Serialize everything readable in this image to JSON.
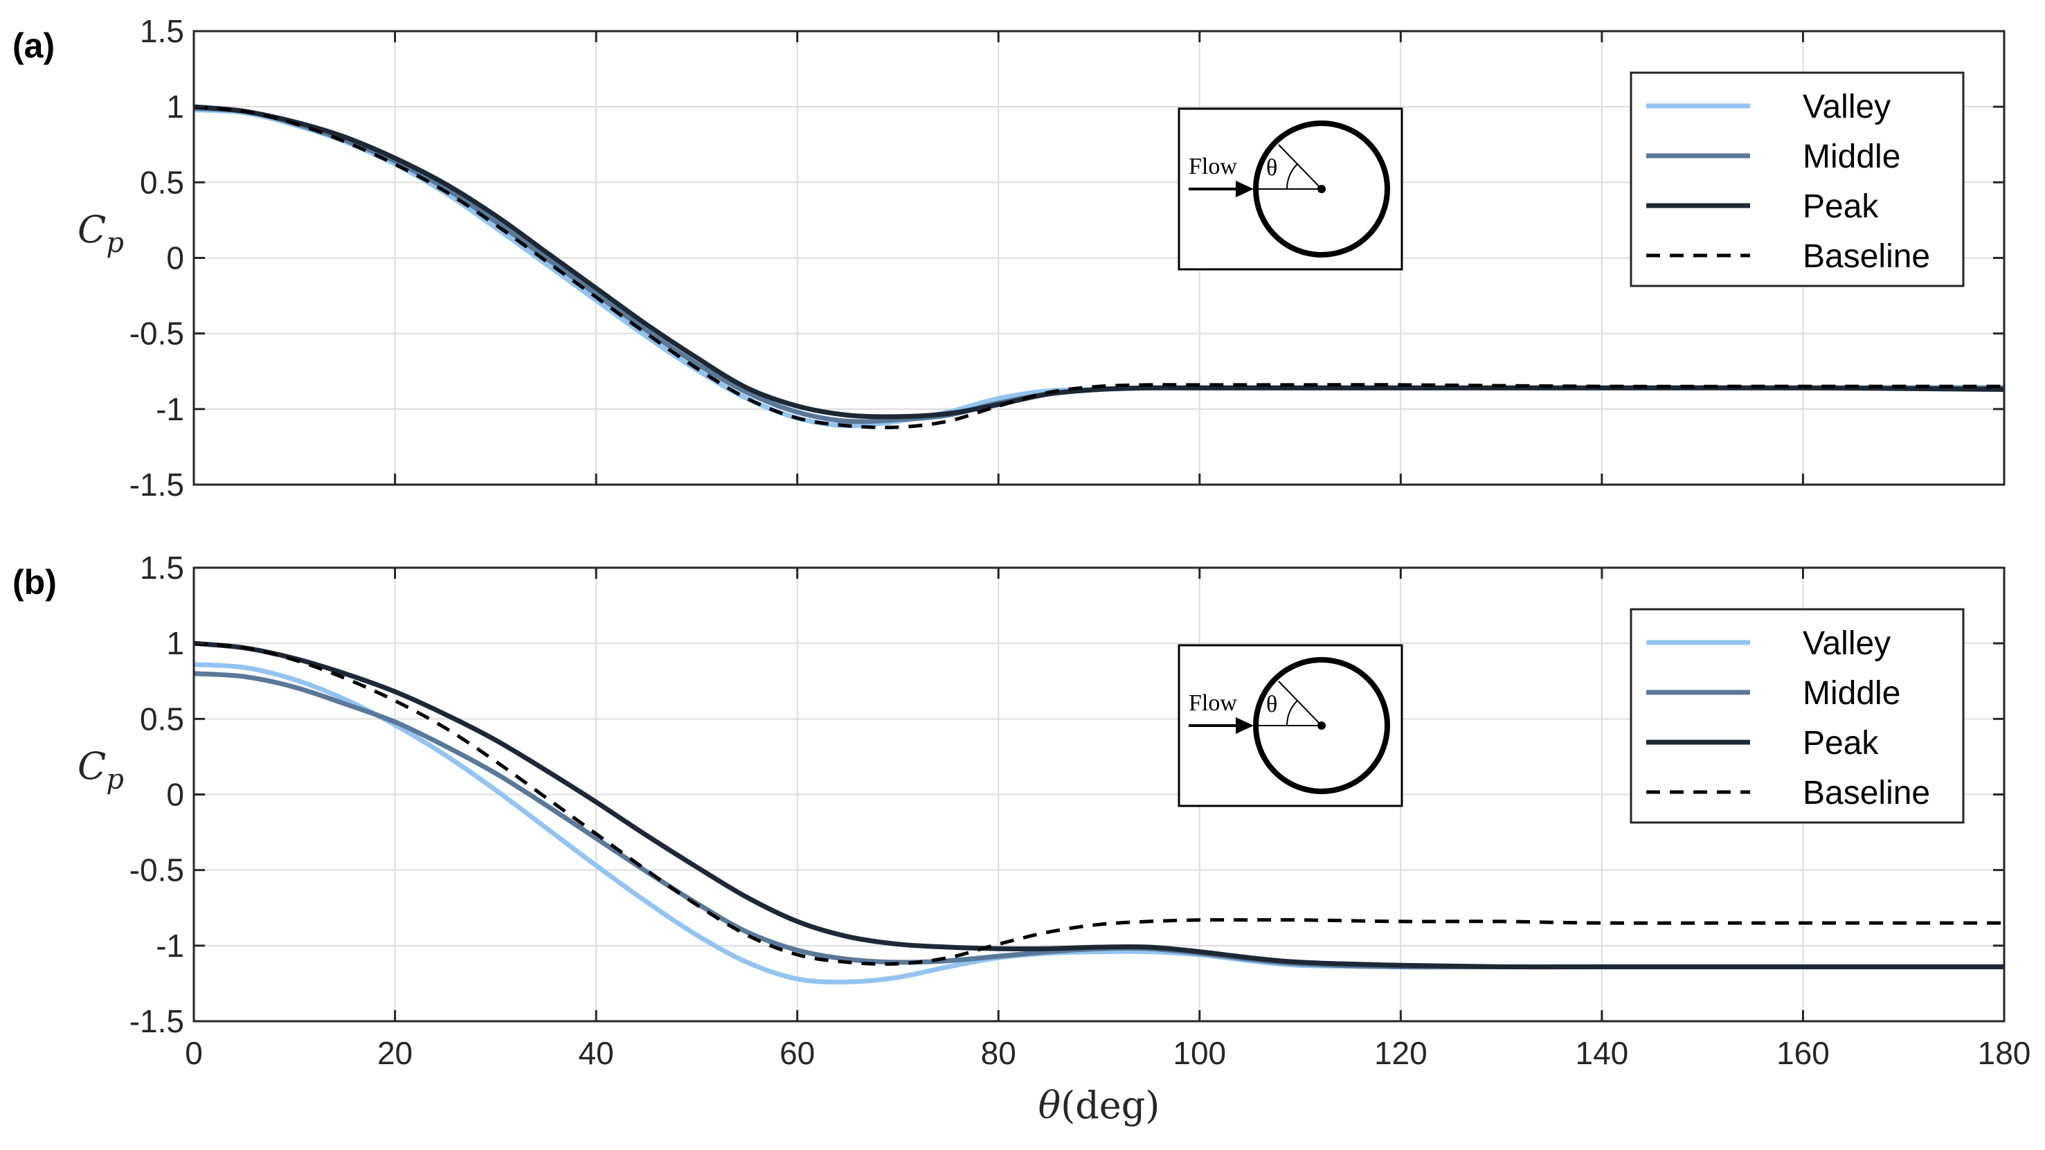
{
  "chart_data": [
    {
      "type": "line",
      "panel_label": "(a)",
      "ylabel_symbol": "C",
      "ylabel_sub": "p",
      "xlabel": "",
      "xlim": [
        0,
        180
      ],
      "ylim": [
        -1.5,
        1.5
      ],
      "xticks": [
        0,
        20,
        40,
        60,
        80,
        100,
        120,
        140,
        160,
        180
      ],
      "yticks": [
        -1.5,
        -1,
        -0.5,
        0,
        0.5,
        1,
        1.5
      ],
      "ytick_labels": [
        "-1.5",
        "-1",
        "-0.5",
        "0",
        "0.5",
        "1",
        "1.5"
      ],
      "grid": true,
      "legend_position": "top-right",
      "inset": {
        "flow_label": "Flow",
        "angle_label": "θ"
      },
      "series": [
        {
          "name": "Valley",
          "color": "#93c4f0",
          "dash": "solid",
          "x": [
            0,
            5,
            10,
            15,
            20,
            25,
            30,
            35,
            40,
            45,
            50,
            55,
            60,
            65,
            70,
            75,
            80,
            85,
            90,
            95,
            100,
            110,
            120,
            140,
            160,
            180
          ],
          "y": [
            0.98,
            0.96,
            0.88,
            0.77,
            0.62,
            0.43,
            0.2,
            -0.04,
            -0.28,
            -0.52,
            -0.74,
            -0.93,
            -1.06,
            -1.11,
            -1.08,
            -1.02,
            -0.93,
            -0.88,
            -0.87,
            -0.86,
            -0.86,
            -0.86,
            -0.86,
            -0.86,
            -0.86,
            -0.86
          ]
        },
        {
          "name": "Middle",
          "color": "#5a7898",
          "dash": "solid",
          "x": [
            0,
            5,
            10,
            15,
            20,
            25,
            30,
            35,
            40,
            45,
            50,
            55,
            60,
            65,
            70,
            75,
            80,
            85,
            90,
            95,
            100,
            110,
            120,
            140,
            160,
            180
          ],
          "y": [
            0.99,
            0.97,
            0.89,
            0.78,
            0.64,
            0.46,
            0.24,
            0.0,
            -0.24,
            -0.48,
            -0.7,
            -0.89,
            -1.02,
            -1.08,
            -1.07,
            -1.04,
            -0.96,
            -0.9,
            -0.87,
            -0.86,
            -0.86,
            -0.86,
            -0.86,
            -0.86,
            -0.86,
            -0.86
          ]
        },
        {
          "name": "Peak",
          "color": "#1e2835",
          "dash": "solid",
          "x": [
            0,
            5,
            10,
            15,
            20,
            25,
            30,
            35,
            40,
            45,
            50,
            55,
            60,
            65,
            70,
            75,
            80,
            85,
            90,
            95,
            100,
            110,
            120,
            140,
            160,
            180
          ],
          "y": [
            1.0,
            0.97,
            0.9,
            0.8,
            0.66,
            0.49,
            0.28,
            0.04,
            -0.2,
            -0.44,
            -0.66,
            -0.86,
            -0.98,
            -1.04,
            -1.05,
            -1.03,
            -0.97,
            -0.9,
            -0.87,
            -0.86,
            -0.86,
            -0.86,
            -0.86,
            -0.86,
            -0.86,
            -0.87
          ]
        },
        {
          "name": "Baseline",
          "color": "#000000",
          "dash": "dashed",
          "x": [
            0,
            5,
            10,
            15,
            20,
            25,
            30,
            35,
            40,
            45,
            50,
            55,
            60,
            65,
            70,
            75,
            80,
            85,
            90,
            95,
            100,
            110,
            120,
            140,
            160,
            180
          ],
          "y": [
            1.0,
            0.97,
            0.89,
            0.77,
            0.62,
            0.44,
            0.22,
            -0.02,
            -0.26,
            -0.5,
            -0.73,
            -0.93,
            -1.06,
            -1.11,
            -1.12,
            -1.08,
            -0.98,
            -0.89,
            -0.85,
            -0.84,
            -0.84,
            -0.84,
            -0.84,
            -0.85,
            -0.85,
            -0.85
          ]
        }
      ]
    },
    {
      "type": "line",
      "panel_label": "(b)",
      "ylabel_symbol": "C",
      "ylabel_sub": "p",
      "xlabel_symbol": "θ",
      "xlabel_unit": "(deg)",
      "xlim": [
        0,
        180
      ],
      "ylim": [
        -1.5,
        1.5
      ],
      "xticks": [
        0,
        20,
        40,
        60,
        80,
        100,
        120,
        140,
        160,
        180
      ],
      "xtick_labels": [
        "0",
        "20",
        "40",
        "60",
        "80",
        "100",
        "120",
        "140",
        "160",
        "180"
      ],
      "yticks": [
        -1.5,
        -1,
        -0.5,
        0,
        0.5,
        1,
        1.5
      ],
      "ytick_labels": [
        "-1.5",
        "-1",
        "-0.5",
        "0",
        "0.5",
        "1",
        "1.5"
      ],
      "grid": true,
      "legend_position": "top-right",
      "inset": {
        "flow_label": "Flow",
        "angle_label": "θ"
      },
      "series": [
        {
          "name": "Valley",
          "color": "#93c4f0",
          "dash": "solid",
          "x": [
            0,
            5,
            10,
            15,
            20,
            25,
            30,
            35,
            40,
            45,
            50,
            55,
            60,
            65,
            70,
            75,
            80,
            85,
            90,
            95,
            100,
            105,
            110,
            120,
            130,
            140,
            160,
            180
          ],
          "y": [
            0.86,
            0.84,
            0.76,
            0.63,
            0.46,
            0.26,
            0.03,
            -0.22,
            -0.47,
            -0.71,
            -0.93,
            -1.11,
            -1.22,
            -1.24,
            -1.21,
            -1.14,
            -1.08,
            -1.05,
            -1.04,
            -1.04,
            -1.06,
            -1.1,
            -1.13,
            -1.14,
            -1.14,
            -1.14,
            -1.14,
            -1.14
          ]
        },
        {
          "name": "Middle",
          "color": "#5a7898",
          "dash": "solid",
          "x": [
            0,
            5,
            10,
            15,
            20,
            25,
            30,
            35,
            40,
            45,
            50,
            55,
            60,
            65,
            70,
            75,
            80,
            85,
            90,
            95,
            100,
            105,
            110,
            120,
            130,
            140,
            160,
            180
          ],
          "y": [
            0.8,
            0.78,
            0.71,
            0.6,
            0.48,
            0.32,
            0.14,
            -0.07,
            -0.29,
            -0.51,
            -0.72,
            -0.91,
            -1.03,
            -1.09,
            -1.11,
            -1.1,
            -1.07,
            -1.04,
            -1.02,
            -1.02,
            -1.05,
            -1.09,
            -1.12,
            -1.14,
            -1.14,
            -1.14,
            -1.14,
            -1.14
          ]
        },
        {
          "name": "Peak",
          "color": "#1e2835",
          "dash": "solid",
          "x": [
            0,
            5,
            10,
            15,
            20,
            25,
            30,
            35,
            40,
            45,
            50,
            55,
            60,
            65,
            70,
            75,
            80,
            85,
            90,
            95,
            100,
            105,
            110,
            120,
            130,
            140,
            160,
            180
          ],
          "y": [
            1.0,
            0.97,
            0.9,
            0.8,
            0.68,
            0.53,
            0.36,
            0.16,
            -0.05,
            -0.27,
            -0.48,
            -0.68,
            -0.84,
            -0.94,
            -0.99,
            -1.01,
            -1.02,
            -1.02,
            -1.01,
            -1.01,
            -1.04,
            -1.08,
            -1.11,
            -1.13,
            -1.14,
            -1.14,
            -1.14,
            -1.14
          ]
        },
        {
          "name": "Baseline",
          "color": "#000000",
          "dash": "dashed",
          "x": [
            0,
            5,
            10,
            15,
            20,
            25,
            30,
            35,
            40,
            45,
            50,
            55,
            60,
            65,
            70,
            75,
            80,
            85,
            90,
            95,
            100,
            105,
            110,
            120,
            130,
            140,
            160,
            180
          ],
          "y": [
            1.0,
            0.97,
            0.89,
            0.77,
            0.62,
            0.44,
            0.22,
            -0.02,
            -0.26,
            -0.5,
            -0.73,
            -0.93,
            -1.06,
            -1.11,
            -1.12,
            -1.08,
            -0.99,
            -0.91,
            -0.86,
            -0.84,
            -0.83,
            -0.83,
            -0.83,
            -0.84,
            -0.84,
            -0.85,
            -0.85,
            -0.85
          ]
        }
      ]
    }
  ]
}
